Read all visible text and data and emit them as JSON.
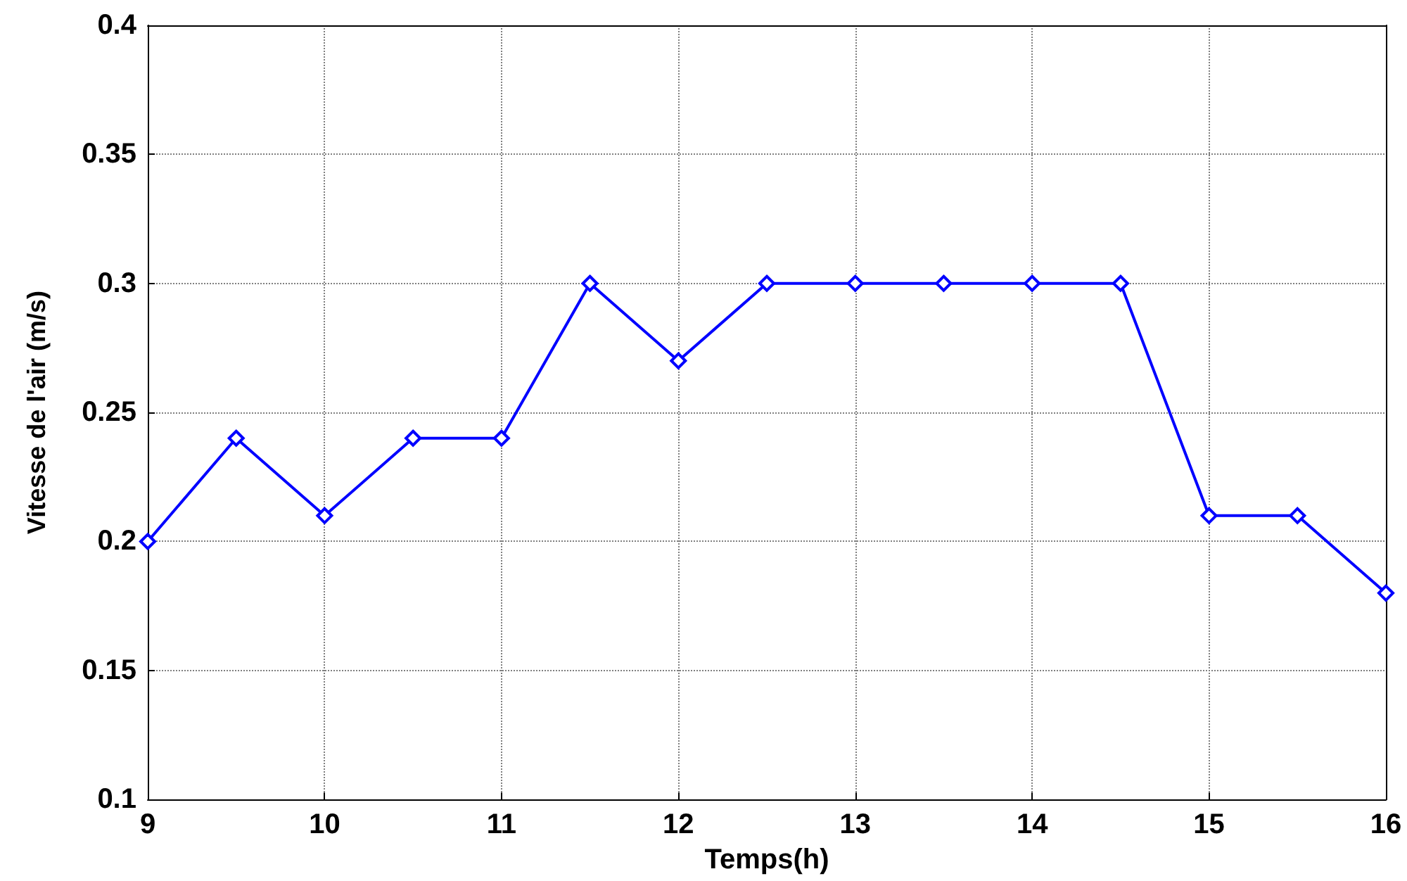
{
  "chart_data": {
    "type": "line",
    "xlabel": "Temps(h)",
    "ylabel": "Vitesse de l'air (m/s)",
    "x": [
      9,
      9.5,
      10,
      10.5,
      11,
      11.5,
      12,
      12.5,
      13,
      13.5,
      14,
      14.5,
      15,
      15.5,
      16
    ],
    "series": [
      {
        "color": "#0000ff",
        "values": [
          0.2,
          0.24,
          0.21,
          0.24,
          0.24,
          0.3,
          0.27,
          0.3,
          0.3,
          0.3,
          0.3,
          0.3,
          0.21,
          0.21,
          0.18
        ]
      }
    ],
    "xlim": [
      9,
      16
    ],
    "xticks": [
      9,
      10,
      11,
      12,
      13,
      14,
      15,
      16
    ],
    "ylim": [
      0.1,
      0.4
    ],
    "yticks": [
      0.1,
      0.15,
      0.2,
      0.25,
      0.3,
      0.35,
      0.4
    ],
    "grid": true,
    "marker": "diamond",
    "line_style": "solid"
  }
}
